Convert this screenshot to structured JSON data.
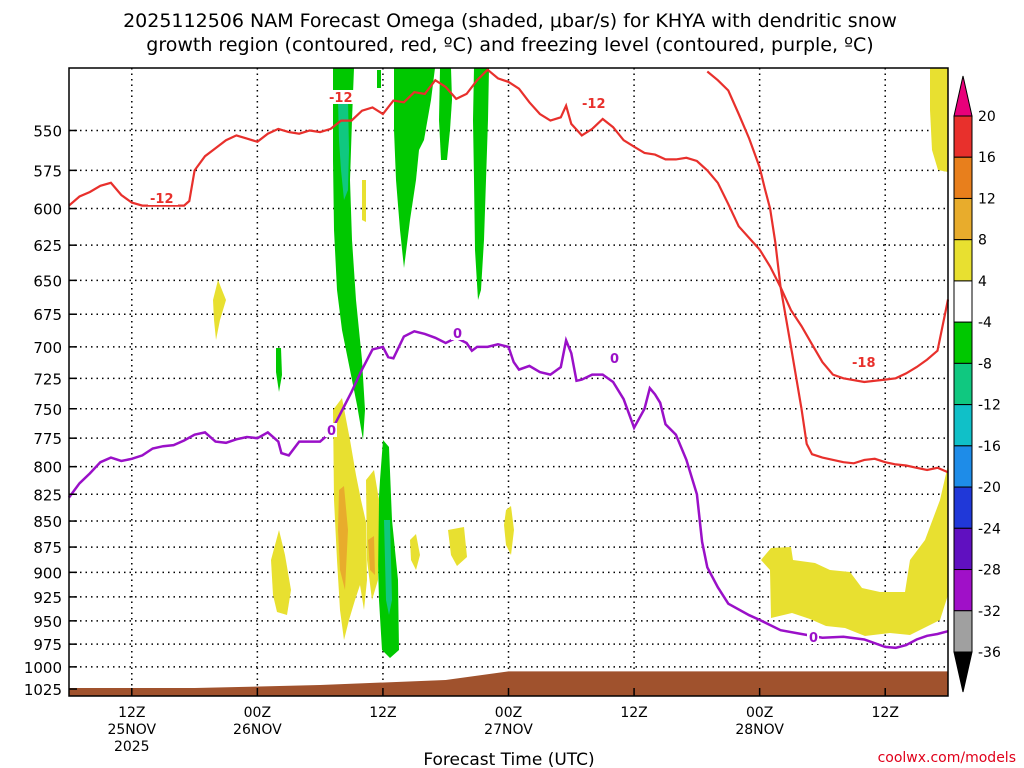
{
  "title_line1": "2025112506 NAM Forecast Omega (shaded, μbar/s) for KHYA with dendritic snow",
  "title_line2": "growth region (contoured, red, ºC) and freezing level (contoured, purple, ºC)",
  "credit": "coolwx.com/models",
  "chart_data": {
    "type": "heatmap",
    "title": "2025112506 NAM Forecast Omega (shaded, μbar/s) for KHYA with dendritic snow growth region (contoured, red, ºC) and freezing level (contoured, purple, ºC)",
    "xlabel": "Forecast Time (UTC)",
    "ylabel": "",
    "x_hours_from_06z_25nov": [
      0,
      84
    ],
    "y_pressure_range": [
      1033,
      513
    ],
    "yticks": [
      "550",
      "575",
      "600",
      "625",
      "650",
      "675",
      "700",
      "725",
      "750",
      "775",
      "800",
      "825",
      "850",
      "875",
      "900",
      "925",
      "950",
      "975",
      "1000",
      "1025"
    ],
    "xticks": [
      {
        "hour": 6,
        "lines": [
          "12Z",
          "25NOV",
          "2025"
        ]
      },
      {
        "hour": 18,
        "lines": [
          "00Z",
          "26NOV"
        ]
      },
      {
        "hour": 30,
        "lines": [
          "12Z"
        ]
      },
      {
        "hour": 42,
        "lines": [
          "00Z",
          "27NOV"
        ]
      },
      {
        "hour": 54,
        "lines": [
          "12Z"
        ]
      },
      {
        "hour": 66,
        "lines": [
          "00Z",
          "28NOV"
        ]
      },
      {
        "hour": 78,
        "lines": [
          "12Z"
        ]
      }
    ],
    "colorbar": {
      "labels": [
        "20",
        "16",
        "12",
        "8",
        "4",
        "-4",
        "-8",
        "-12",
        "-16",
        "-20",
        "-24",
        "-28",
        "-32",
        "-36"
      ],
      "colors": [
        "#e8007a",
        "#e8302c",
        "#e87f1c",
        "#e8ac2c",
        "#e8e030",
        "#ffffff",
        "#00c800",
        "#10c880",
        "#10c0c8",
        "#1e8ce8",
        "#2038d8",
        "#6010c0",
        "#a010c8",
        "#a0a0a0",
        "#000000"
      ]
    },
    "red_contour": {
      "label": "-12",
      "label2": "-18",
      "upper_line": [
        [
          0,
          598
        ],
        [
          1,
          592
        ],
        [
          2,
          589
        ],
        [
          3,
          585
        ],
        [
          4,
          583
        ],
        [
          5,
          591
        ],
        [
          6,
          596
        ],
        [
          7,
          598
        ],
        [
          8,
          598
        ],
        [
          11,
          598
        ],
        [
          11.5,
          595
        ],
        [
          12,
          575
        ],
        [
          13,
          566
        ],
        [
          14,
          561
        ],
        [
          15,
          556
        ],
        [
          16,
          553
        ],
        [
          17,
          555
        ],
        [
          18,
          557
        ],
        [
          19,
          552
        ],
        [
          20,
          549
        ],
        [
          21,
          551
        ],
        [
          22,
          552
        ],
        [
          23,
          550
        ],
        [
          24,
          551
        ],
        [
          25,
          549
        ],
        [
          26,
          544
        ],
        [
          27,
          544
        ],
        [
          28,
          538
        ],
        [
          29,
          536
        ],
        [
          30,
          540
        ],
        [
          31,
          532
        ],
        [
          32,
          533
        ],
        [
          33,
          527
        ],
        [
          34,
          528
        ],
        [
          35,
          520
        ],
        [
          36,
          524
        ],
        [
          37,
          531
        ],
        [
          38,
          528
        ],
        [
          39,
          520
        ],
        [
          40,
          514
        ],
        [
          41,
          519
        ],
        [
          42,
          521
        ],
        [
          43,
          525
        ],
        [
          44,
          533
        ],
        [
          45,
          540
        ],
        [
          46,
          544
        ],
        [
          47,
          542
        ],
        [
          47.5,
          535
        ],
        [
          48,
          546
        ],
        [
          49,
          553
        ],
        [
          50,
          549
        ],
        [
          51,
          543
        ],
        [
          52,
          548
        ],
        [
          53,
          556
        ],
        [
          54,
          560
        ],
        [
          55,
          564
        ],
        [
          56,
          565
        ],
        [
          57,
          568
        ],
        [
          58,
          568
        ],
        [
          59,
          567
        ],
        [
          60,
          569
        ],
        [
          61,
          575
        ],
        [
          62,
          583
        ],
        [
          63,
          597
        ],
        [
          64,
          612
        ],
        [
          65,
          620
        ],
        [
          66,
          628
        ],
        [
          67,
          640
        ],
        [
          68,
          655
        ],
        [
          69,
          672
        ],
        [
          70,
          684
        ],
        [
          71,
          698
        ],
        [
          72,
          712
        ],
        [
          73,
          722
        ],
        [
          74,
          725
        ],
        [
          76,
          728
        ],
        [
          78,
          726
        ],
        [
          79,
          725
        ],
        [
          80,
          721
        ],
        [
          81,
          716
        ],
        [
          82,
          710
        ],
        [
          83,
          703
        ],
        [
          83.5,
          683
        ],
        [
          84,
          664
        ]
      ],
      "lower_line": [
        [
          61,
          515
        ],
        [
          62,
          520
        ],
        [
          63,
          526
        ],
        [
          64,
          540
        ],
        [
          65,
          555
        ],
        [
          66,
          573
        ],
        [
          66.5,
          587
        ],
        [
          67,
          600
        ],
        [
          67.5,
          623
        ],
        [
          68,
          655
        ],
        [
          69,
          700
        ],
        [
          70,
          750
        ],
        [
          70.5,
          780
        ],
        [
          71,
          789
        ],
        [
          72,
          792
        ],
        [
          74,
          796
        ],
        [
          75,
          797
        ],
        [
          76,
          794
        ],
        [
          77,
          793
        ],
        [
          78,
          796
        ],
        [
          79,
          798
        ],
        [
          80,
          799
        ],
        [
          81,
          801
        ],
        [
          82,
          803
        ],
        [
          83,
          801
        ],
        [
          84,
          805
        ]
      ]
    },
    "freezing_level": {
      "label": "0",
      "line": [
        [
          0,
          828
        ],
        [
          1,
          815
        ],
        [
          2,
          806
        ],
        [
          3,
          796
        ],
        [
          4,
          792
        ],
        [
          5,
          795
        ],
        [
          6,
          793
        ],
        [
          7,
          790
        ],
        [
          8,
          784
        ],
        [
          9,
          782
        ],
        [
          10,
          781
        ],
        [
          11,
          777
        ],
        [
          12,
          772
        ],
        [
          13,
          770
        ],
        [
          14,
          778
        ],
        [
          15,
          779
        ],
        [
          16,
          776
        ],
        [
          17,
          774
        ],
        [
          18,
          775
        ],
        [
          19,
          770
        ],
        [
          20,
          778
        ],
        [
          20.3,
          788
        ],
        [
          21,
          790
        ],
        [
          22,
          778
        ],
        [
          24,
          778
        ],
        [
          25,
          770
        ],
        [
          26,
          753
        ],
        [
          27,
          736
        ],
        [
          28,
          718
        ],
        [
          29,
          702
        ],
        [
          30,
          700
        ],
        [
          30.5,
          708
        ],
        [
          31,
          709
        ],
        [
          32,
          692
        ],
        [
          33,
          688
        ],
        [
          34,
          690
        ],
        [
          35,
          693
        ],
        [
          36,
          697
        ],
        [
          37,
          693
        ],
        [
          38,
          697
        ],
        [
          38.5,
          703
        ],
        [
          39,
          700
        ],
        [
          40,
          700
        ],
        [
          41,
          698
        ],
        [
          42,
          700
        ],
        [
          42.5,
          712
        ],
        [
          43,
          718
        ],
        [
          44,
          715
        ],
        [
          45,
          720
        ],
        [
          46,
          722
        ],
        [
          47,
          716
        ],
        [
          47.5,
          695
        ],
        [
          48,
          705
        ],
        [
          48.5,
          727
        ],
        [
          49,
          726
        ],
        [
          50,
          722
        ],
        [
          51,
          722
        ],
        [
          52,
          728
        ],
        [
          53,
          742
        ],
        [
          54,
          766
        ],
        [
          55,
          750
        ],
        [
          55.5,
          733
        ],
        [
          56,
          738
        ],
        [
          56.5,
          745
        ],
        [
          57,
          763
        ],
        [
          58,
          772
        ],
        [
          59,
          794
        ],
        [
          60,
          825
        ],
        [
          60.5,
          870
        ],
        [
          61,
          895
        ],
        [
          62,
          915
        ],
        [
          63,
          932
        ],
        [
          65,
          944
        ],
        [
          66,
          949
        ],
        [
          68,
          960
        ],
        [
          70,
          964
        ],
        [
          72,
          968
        ],
        [
          74,
          967
        ],
        [
          76,
          970
        ],
        [
          78,
          978
        ],
        [
          79,
          979
        ],
        [
          80,
          976
        ],
        [
          81,
          970
        ],
        [
          82,
          966
        ],
        [
          83,
          964
        ],
        [
          84,
          961
        ]
      ]
    },
    "ground_pressure_range": [
      1025,
      1000
    ]
  }
}
